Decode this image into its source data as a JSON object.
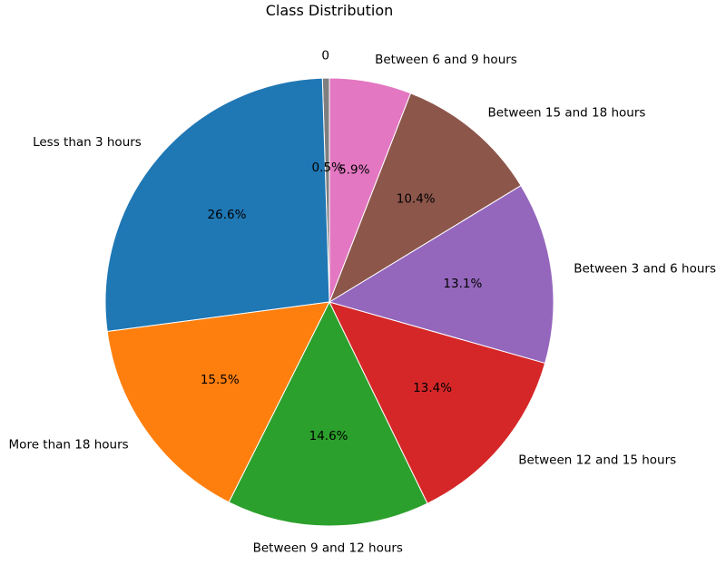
{
  "chart_data": {
    "type": "pie",
    "title": "Class Distribution",
    "start_angle_deg": 90,
    "direction": "counterclockwise",
    "slices": [
      {
        "label": "0",
        "value": 0.5,
        "pct_label": "0.5%",
        "color": "#7f7f7f"
      },
      {
        "label": "Less than 3 hours",
        "value": 26.6,
        "pct_label": "26.6%",
        "color": "#1f77b4"
      },
      {
        "label": "More than 18 hours",
        "value": 15.5,
        "pct_label": "15.5%",
        "color": "#ff7f0e"
      },
      {
        "label": "Between 9 and 12 hours",
        "value": 14.6,
        "pct_label": "14.6%",
        "color": "#2ca02c"
      },
      {
        "label": "Between 12 and 15 hours",
        "value": 13.4,
        "pct_label": "13.4%",
        "color": "#d62728"
      },
      {
        "label": "Between 3 and 6 hours",
        "value": 13.1,
        "pct_label": "13.1%",
        "color": "#9467bd"
      },
      {
        "label": "Between 15 and 18 hours",
        "value": 10.4,
        "pct_label": "10.4%",
        "color": "#8c564b"
      },
      {
        "label": "Between 6 and 9  hours",
        "value": 5.9,
        "pct_label": "5.9%",
        "color": "#e377c2"
      }
    ]
  }
}
